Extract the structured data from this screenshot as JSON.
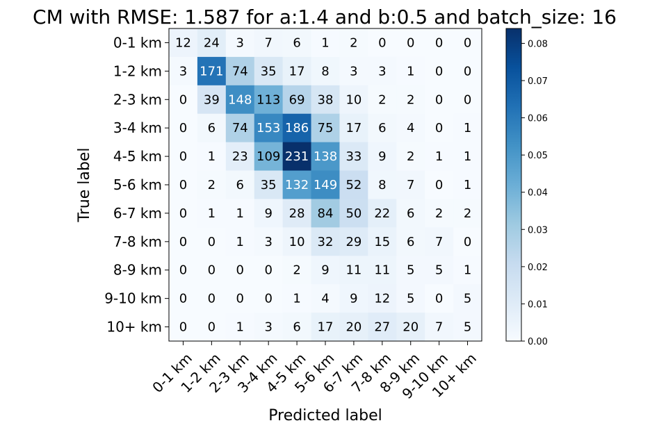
{
  "chart_data": {
    "type": "heatmap",
    "title": "CM with RMSE: 1.587 for a:1.4 and b:0.5 and batch_size: 16",
    "xlabel": "Predicted label",
    "ylabel": "True label",
    "x_categories": [
      "0-1 km",
      "1-2 km",
      "2-3 km",
      "3-4 km",
      "4-5 km",
      "5-6 km",
      "6-7 km",
      "7-8 km",
      "8-9 km",
      "9-10 km",
      "10+ km"
    ],
    "y_categories": [
      "0-1 km",
      "1-2 km",
      "2-3 km",
      "3-4 km",
      "4-5 km",
      "5-6 km",
      "6-7 km",
      "7-8 km",
      "8-9 km",
      "9-10 km",
      "10+ km"
    ],
    "matrix": [
      [
        12,
        24,
        3,
        7,
        6,
        1,
        2,
        0,
        0,
        0,
        0
      ],
      [
        3,
        171,
        74,
        35,
        17,
        8,
        3,
        3,
        1,
        0,
        0
      ],
      [
        0,
        39,
        148,
        113,
        69,
        38,
        10,
        2,
        2,
        0,
        0
      ],
      [
        0,
        6,
        74,
        153,
        186,
        75,
        17,
        6,
        4,
        0,
        1
      ],
      [
        0,
        1,
        23,
        109,
        231,
        138,
        33,
        9,
        2,
        1,
        1
      ],
      [
        0,
        2,
        6,
        35,
        132,
        149,
        52,
        8,
        7,
        0,
        1
      ],
      [
        0,
        1,
        1,
        9,
        28,
        84,
        50,
        22,
        6,
        2,
        2
      ],
      [
        0,
        0,
        1,
        3,
        10,
        32,
        29,
        15,
        6,
        7,
        0
      ],
      [
        0,
        0,
        0,
        0,
        2,
        9,
        11,
        11,
        5,
        5,
        1
      ],
      [
        0,
        0,
        0,
        0,
        1,
        4,
        9,
        12,
        5,
        0,
        5
      ],
      [
        0,
        0,
        1,
        3,
        6,
        17,
        20,
        27,
        20,
        7,
        5
      ]
    ],
    "colormap": "Blues",
    "colorbar": {
      "min": 0.0,
      "max": 0.084,
      "ticks": [
        "0.00",
        "0.01",
        "0.02",
        "0.03",
        "0.04",
        "0.05",
        "0.06",
        "0.07",
        "0.08"
      ]
    }
  }
}
